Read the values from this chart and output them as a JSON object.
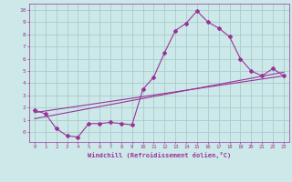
{
  "xlabel": "Windchill (Refroidissement éolien,°C)",
  "ylabel": "",
  "bg_color": "#cce8e8",
  "line_color": "#993399",
  "grid_color": "#aacccc",
  "xlim": [
    -0.5,
    23.5
  ],
  "ylim": [
    -0.8,
    10.5
  ],
  "xticks": [
    0,
    1,
    2,
    3,
    4,
    5,
    6,
    7,
    8,
    9,
    10,
    11,
    12,
    13,
    14,
    15,
    16,
    17,
    18,
    19,
    20,
    21,
    22,
    23
  ],
  "yticks": [
    0,
    1,
    2,
    3,
    4,
    5,
    6,
    7,
    8,
    9,
    10
  ],
  "line1_x": [
    0,
    1,
    2,
    3,
    4,
    5,
    6,
    7,
    8,
    9,
    10,
    11,
    12,
    13,
    14,
    15,
    16,
    17,
    18,
    19,
    20,
    21,
    22,
    23
  ],
  "line1_y": [
    1.8,
    1.5,
    0.3,
    -0.3,
    -0.4,
    0.7,
    0.7,
    0.8,
    0.7,
    0.6,
    3.5,
    4.5,
    6.5,
    8.3,
    8.9,
    9.9,
    9.0,
    8.5,
    7.8,
    6.0,
    5.0,
    4.6,
    5.2,
    4.6
  ],
  "line2_x": [
    0,
    23
  ],
  "line2_y": [
    1.6,
    4.6
  ],
  "line3_x": [
    0,
    23
  ],
  "line3_y": [
    1.1,
    4.9
  ]
}
